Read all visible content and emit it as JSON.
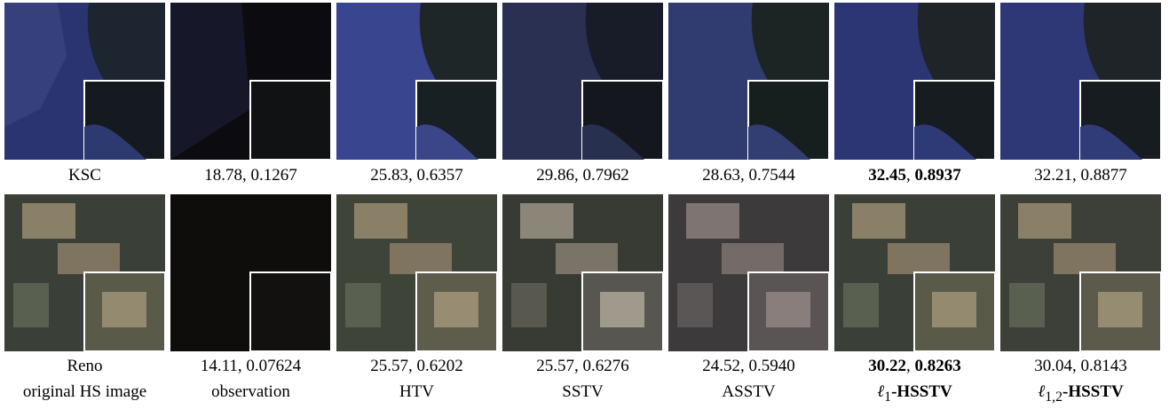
{
  "rows": [
    {
      "label": "KSC",
      "cells": [
        {
          "psnr": "18.78",
          "ssim": "0.1267",
          "best": false
        },
        {
          "psnr": "25.83",
          "ssim": "0.6357",
          "best": false
        },
        {
          "psnr": "29.86",
          "ssim": "0.7962",
          "best": false
        },
        {
          "psnr": "28.63",
          "ssim": "0.7544",
          "best": false
        },
        {
          "psnr": "32.45",
          "ssim": "0.8937",
          "best": true
        },
        {
          "psnr": "32.21",
          "ssim": "0.8877",
          "best": false
        }
      ]
    },
    {
      "label": "Reno",
      "cells": [
        {
          "psnr": "14.11",
          "ssim": "0.07624",
          "best": false
        },
        {
          "psnr": "25.57",
          "ssim": "0.6202",
          "best": false
        },
        {
          "psnr": "25.57",
          "ssim": "0.6276",
          "best": false
        },
        {
          "psnr": "24.52",
          "ssim": "0.5940",
          "best": false
        },
        {
          "psnr": "30.22",
          "ssim": "0.8263",
          "best": true
        },
        {
          "psnr": "30.04",
          "ssim": "0.8143",
          "best": false
        }
      ]
    }
  ],
  "methods": {
    "original": "original HS image",
    "observation": "observation",
    "htv": "HTV",
    "sstv": "SSTV",
    "asstv": "ASSTV",
    "l1_sym": "ℓ",
    "l1_sub": "1",
    "l1_name": "-HSSTV",
    "l12_sym": "ℓ",
    "l12_sub": "1,2",
    "l12_name": "-HSSTV"
  },
  "separator": ", "
}
